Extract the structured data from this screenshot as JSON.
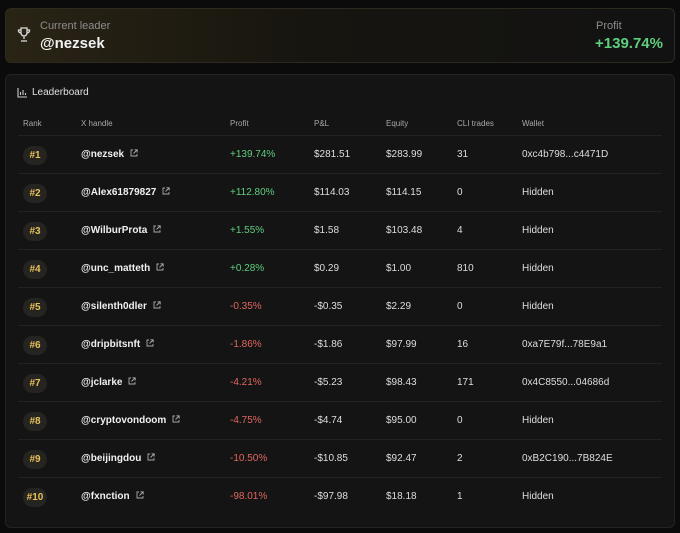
{
  "leader": {
    "label": "Current leader",
    "handle": "@nezsek",
    "profit_label": "Profit",
    "profit": "+139.74%"
  },
  "leaderboard": {
    "title": "Leaderboard",
    "columns": [
      "Rank",
      "X handle",
      "Profit",
      "P&L",
      "Equity",
      "CLI trades",
      "Wallet"
    ],
    "rows": [
      [
        "#1",
        "@nezsek",
        "+139.74%",
        "$281.51",
        "$283.99",
        "31",
        "0xc4b798...c4471D"
      ],
      [
        "#2",
        "@Alex61879827",
        "+112.80%",
        "$114.03",
        "$114.15",
        "0",
        "Hidden"
      ],
      [
        "#3",
        "@WilburProta",
        "+1.55%",
        "$1.58",
        "$103.48",
        "4",
        "Hidden"
      ],
      [
        "#4",
        "@unc_matteth",
        "+0.28%",
        "$0.29",
        "$1.00",
        "810",
        "Hidden"
      ],
      [
        "#5",
        "@silenth0dler",
        "-0.35%",
        "-$0.35",
        "$2.29",
        "0",
        "Hidden"
      ],
      [
        "#6",
        "@dripbitsnft",
        "-1.86%",
        "-$1.86",
        "$97.99",
        "16",
        "0xa7E79f...78E9a1"
      ],
      [
        "#7",
        "@jclarke",
        "-4.21%",
        "-$5.23",
        "$98.43",
        "171",
        "0x4C8550...04686d"
      ],
      [
        "#8",
        "@cryptovondoom",
        "-4.75%",
        "-$4.74",
        "$95.00",
        "0",
        "Hidden"
      ],
      [
        "#9",
        "@beijingdou",
        "-10.50%",
        "-$10.85",
        "$92.47",
        "2",
        "0xB2C190...7B824E"
      ],
      [
        "#10",
        "@fxnction",
        "-98.01%",
        "-$97.98",
        "$18.18",
        "1",
        "Hidden"
      ]
    ]
  }
}
